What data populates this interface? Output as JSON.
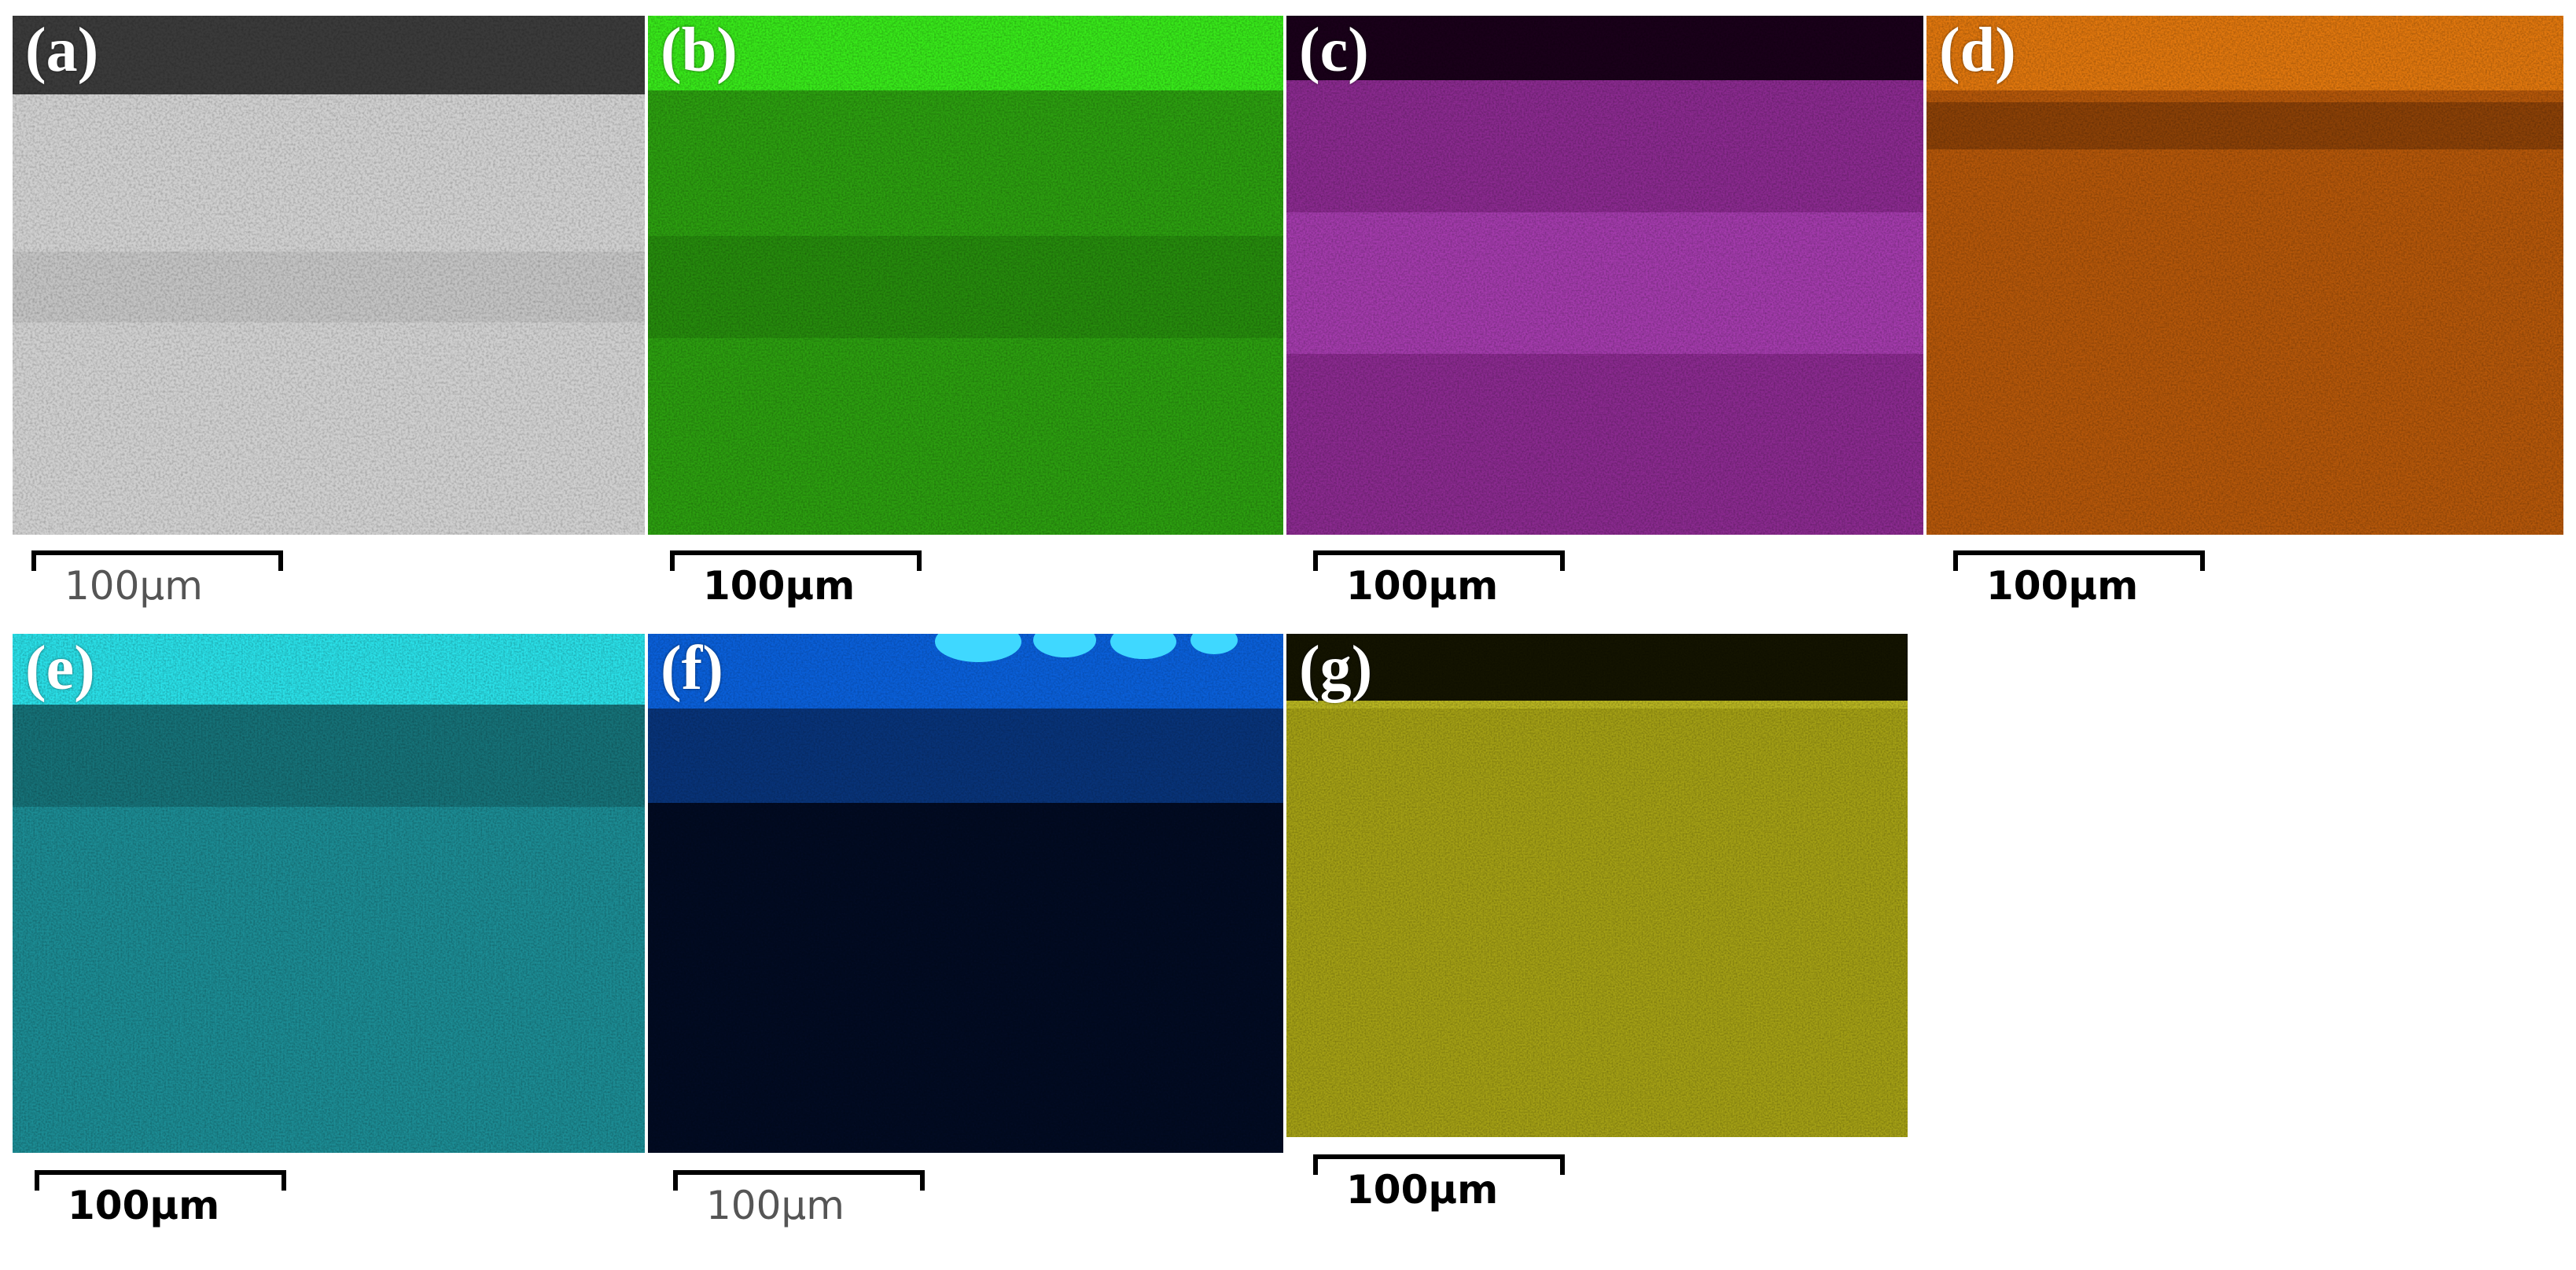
{
  "panels": [
    {
      "id": "a",
      "label": "(a)",
      "scale": "100µm",
      "colors": {
        "top": "#3a3a3a",
        "body": "#cfcfcf",
        "band": "#a9a9a9"
      },
      "style": "light"
    },
    {
      "id": "b",
      "label": "(b)",
      "scale": "100µm",
      "colors": {
        "top": "#38e81a",
        "body": "#2c9e10",
        "band": "#1f6f0a"
      },
      "style": "dark"
    },
    {
      "id": "c",
      "label": "(c)",
      "scale": "100µm",
      "colors": {
        "top": "#1a001a",
        "body": "#8a2a8f",
        "band": "#c24fd0"
      },
      "style": "dark"
    },
    {
      "id": "d",
      "label": "(d)",
      "scale": "100µm",
      "colors": {
        "top": "#e0770e",
        "body": "#b4570a",
        "band": "#6a3005"
      },
      "style": "dark"
    },
    {
      "id": "e",
      "label": "(e)",
      "scale": "100µm",
      "colors": {
        "top": "#2ae0e8",
        "body": "#1c8c94",
        "band": "#0f5257"
      },
      "style": "dark"
    },
    {
      "id": "f",
      "label": "(f)",
      "scale": "100µm",
      "colors": {
        "top": "#0a5fd8",
        "body": "#020b22",
        "band": "#0a3d8f"
      },
      "style": "light"
    },
    {
      "id": "g",
      "label": "(g)",
      "scale": "100µm",
      "colors": {
        "top": "#141400",
        "body": "#a4a015",
        "band": "#c8c42a"
      },
      "style": "dark"
    }
  ]
}
